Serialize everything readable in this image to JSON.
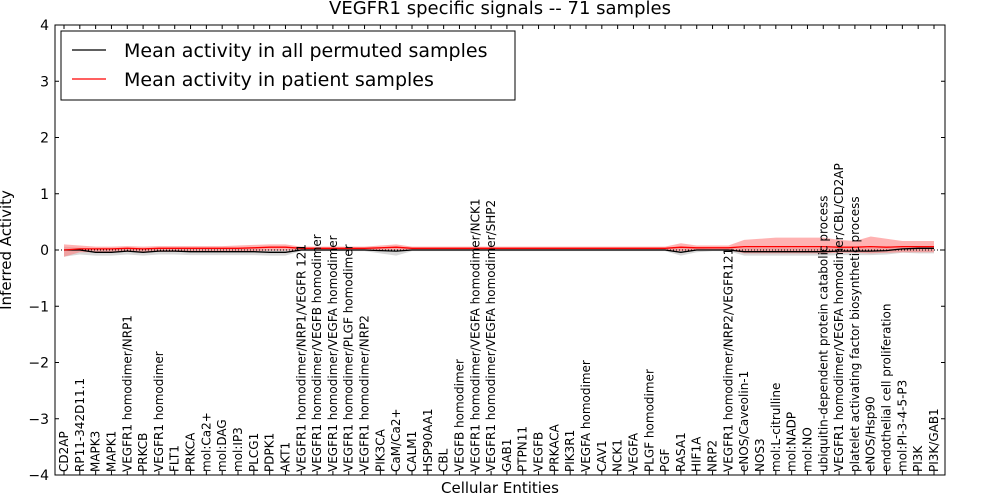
{
  "chart_data": {
    "type": "line",
    "title": "VEGFR1 specific signals -- 71 samples",
    "xlabel": "Cellular Entities",
    "ylabel": "Inferred Activity",
    "ylim": [
      -4,
      4
    ],
    "yticks": [
      4,
      3,
      2,
      1,
      0,
      -1,
      -2,
      -3,
      -4
    ],
    "ytick_labels": [
      "4",
      "3",
      "2",
      "1",
      "0",
      "−1",
      "−2",
      "−3",
      "−4"
    ],
    "grid": false,
    "legend_position": "upper-left",
    "categories": [
      "CD2AP",
      "RP11-342D11.1",
      "MAPK3",
      "MAPK1",
      "VEGFR1 homodimer/NRP1",
      "PRKCB",
      "VEGFR1 homodimer",
      "FLT1",
      "PRKCA",
      "mol:Ca2+",
      "mol:DAG",
      "mol:IP3",
      "PLCG1",
      "PDPK1",
      "AKT1",
      "VEGFR1 homodimer/NRP1/VEGFR 121",
      "VEGFR1 homodimer/VEGFB homodimer",
      "VEGFR1 homodimer/VEGFA homodimer",
      "VEGFR1 homodimer/PLGF homodimer",
      "VEGFR1 homodimer/NRP2",
      "PIK3CA",
      "CaM/Ca2+",
      "CALM1",
      "HSP90AA1",
      "CBL",
      "VEGFB homodimer",
      "VEGFR1 homodimer/VEGFA homodimer/NCK1",
      "VEGFR1 homodimer/VEGFA homodimer/SHP2",
      "GAB1",
      "PTPN11",
      "VEGFB",
      "PRKACA",
      "PIK3R1",
      "VEGFA homodimer",
      "CAV1",
      "NCK1",
      "VEGFA",
      "PLGF homodimer",
      "PGF",
      "RASA1",
      "HIF1A",
      "NRP2",
      "VEGFR1 homodimer/NRP2/VEGFR121",
      "eNOS/Caveolin-1",
      "NOS3",
      "mol:L-citrulline",
      "mol:NADP",
      "mol:NO",
      "ubiquitin-dependent protein catabolic process",
      "VEGFR1 homodimer/VEGFA homodimer/CBL/CD2AP",
      "platelet activating factor biosynthetic process",
      "eNOS/Hsp90",
      "endothelial cell proliferation",
      "mol:PI-3-4-5-P3",
      "PI3K",
      "PI3K/GAB1"
    ],
    "series": [
      {
        "name": "Mean activity in all permuted samples",
        "color": "#000000",
        "values": [
          0.0,
          0.0,
          -0.04,
          -0.04,
          -0.02,
          -0.04,
          -0.02,
          -0.02,
          -0.03,
          -0.03,
          -0.03,
          -0.03,
          -0.03,
          -0.04,
          -0.04,
          0.0,
          0.0,
          0.0,
          0.0,
          0.0,
          -0.01,
          -0.02,
          0.0,
          0.0,
          0.0,
          0.0,
          0.0,
          0.0,
          0.0,
          0.0,
          0.0,
          0.0,
          0.0,
          0.0,
          0.0,
          0.0,
          0.0,
          0.0,
          0.0,
          -0.04,
          0.0,
          0.0,
          0.0,
          -0.03,
          -0.03,
          -0.03,
          -0.03,
          -0.03,
          -0.03,
          -0.02,
          -0.02,
          -0.02,
          -0.01,
          0.02,
          0.03,
          0.03
        ],
        "band_upper": [
          0.06,
          0.04,
          0.02,
          0.02,
          0.03,
          0.02,
          0.03,
          0.03,
          0.02,
          0.02,
          0.02,
          0.02,
          0.02,
          0.02,
          0.02,
          0.02,
          0.02,
          0.02,
          0.02,
          0.02,
          0.04,
          0.03,
          0.02,
          0.02,
          0.02,
          0.02,
          0.02,
          0.02,
          0.02,
          0.02,
          0.02,
          0.02,
          0.02,
          0.02,
          0.02,
          0.02,
          0.02,
          0.02,
          0.02,
          0.03,
          0.03,
          0.02,
          0.02,
          0.04,
          0.04,
          0.04,
          0.04,
          0.04,
          0.04,
          0.04,
          0.04,
          0.04,
          0.05,
          0.06,
          0.07,
          0.07
        ],
        "band_lower": [
          -0.12,
          -0.08,
          -0.1,
          -0.1,
          -0.08,
          -0.1,
          -0.08,
          -0.08,
          -0.09,
          -0.09,
          -0.09,
          -0.09,
          -0.09,
          -0.1,
          -0.1,
          -0.02,
          -0.02,
          -0.02,
          -0.02,
          -0.02,
          -0.06,
          -0.1,
          -0.02,
          -0.02,
          -0.02,
          -0.02,
          -0.02,
          -0.02,
          -0.02,
          -0.02,
          -0.02,
          -0.02,
          -0.02,
          -0.02,
          -0.02,
          -0.02,
          -0.02,
          -0.02,
          -0.02,
          -0.1,
          -0.04,
          -0.02,
          -0.02,
          -0.1,
          -0.1,
          -0.1,
          -0.1,
          -0.1,
          -0.1,
          -0.09,
          -0.09,
          -0.09,
          -0.08,
          -0.05,
          -0.06,
          -0.06
        ]
      },
      {
        "name": "Mean activity in patient samples",
        "color": "#ff0000",
        "values": [
          0.0,
          0.02,
          0.02,
          0.02,
          0.03,
          0.02,
          0.03,
          0.03,
          0.03,
          0.03,
          0.03,
          0.03,
          0.04,
          0.05,
          0.05,
          0.03,
          0.03,
          0.03,
          0.03,
          0.03,
          0.04,
          0.05,
          0.03,
          0.03,
          0.03,
          0.03,
          0.03,
          0.03,
          0.03,
          0.03,
          0.03,
          0.03,
          0.03,
          0.03,
          0.03,
          0.03,
          0.03,
          0.03,
          0.03,
          0.05,
          0.04,
          0.04,
          0.04,
          0.06,
          0.06,
          0.06,
          0.06,
          0.06,
          0.06,
          0.05,
          0.05,
          0.06,
          0.05,
          0.06,
          0.06,
          0.06
        ],
        "band_upper": [
          0.1,
          0.08,
          0.06,
          0.06,
          0.07,
          0.06,
          0.07,
          0.07,
          0.07,
          0.07,
          0.07,
          0.08,
          0.09,
          0.1,
          0.1,
          0.06,
          0.06,
          0.06,
          0.06,
          0.06,
          0.08,
          0.1,
          0.06,
          0.06,
          0.06,
          0.06,
          0.06,
          0.06,
          0.06,
          0.06,
          0.06,
          0.06,
          0.06,
          0.06,
          0.06,
          0.06,
          0.06,
          0.06,
          0.06,
          0.12,
          0.08,
          0.08,
          0.08,
          0.18,
          0.2,
          0.22,
          0.22,
          0.22,
          0.22,
          0.18,
          0.16,
          0.24,
          0.2,
          0.16,
          0.16,
          0.16
        ],
        "band_lower": [
          -0.12,
          -0.04,
          -0.04,
          -0.04,
          -0.03,
          -0.04,
          -0.03,
          -0.03,
          -0.03,
          -0.03,
          -0.03,
          -0.03,
          -0.02,
          -0.01,
          -0.01,
          0.0,
          0.0,
          0.0,
          0.0,
          0.0,
          0.0,
          0.0,
          0.0,
          0.0,
          0.0,
          0.0,
          0.0,
          0.0,
          0.0,
          0.0,
          0.0,
          0.0,
          0.0,
          0.0,
          0.0,
          0.0,
          0.0,
          0.0,
          0.0,
          -0.02,
          0.0,
          0.0,
          0.0,
          -0.06,
          -0.06,
          -0.06,
          -0.06,
          -0.06,
          -0.06,
          -0.05,
          -0.05,
          -0.06,
          -0.05,
          -0.04,
          -0.04,
          -0.04
        ]
      }
    ]
  }
}
